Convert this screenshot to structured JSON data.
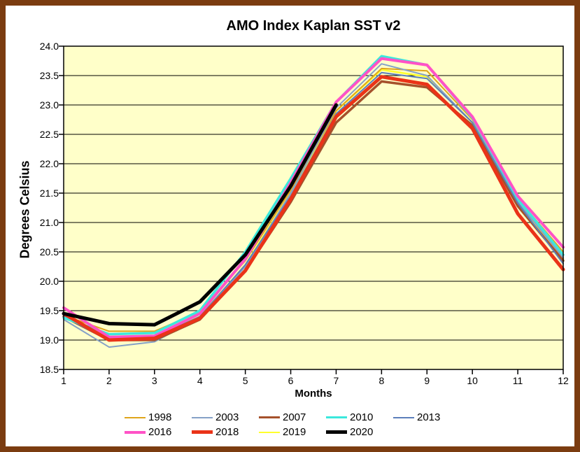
{
  "frame": {
    "border_color": "#7B3C10",
    "background": "#FFFFFF"
  },
  "chart_data": {
    "type": "line",
    "title": "AMO Index Kaplan SST v2",
    "xlabel": "Months",
    "ylabel": "Degrees Celsius",
    "x": [
      1,
      2,
      3,
      4,
      5,
      6,
      7,
      8,
      9,
      10,
      11,
      12
    ],
    "ylim": [
      18.5,
      24.0
    ],
    "yticks": [
      "18.5",
      "19.0",
      "19.5",
      "20.0",
      "20.5",
      "21.0",
      "21.5",
      "22.0",
      "22.5",
      "23.0",
      "23.5",
      "24.0"
    ],
    "grid": "horizontal",
    "plot_bg": "#FFFFC9",
    "axis_color": "#000000",
    "legend_position": "bottom",
    "legend_rows": [
      [
        "1998",
        "2003",
        "2007",
        "2010",
        "2013"
      ],
      [
        "2016",
        "2018",
        "2019",
        "2020"
      ]
    ],
    "draw_order": [
      "2019",
      "1998",
      "2003",
      "2007",
      "2013",
      "2010",
      "2016",
      "2018",
      "2020"
    ],
    "series": [
      {
        "name": "1998",
        "color": "#DFA51B",
        "width": 2,
        "values": [
          19.42,
          19.15,
          19.15,
          19.48,
          20.35,
          21.55,
          22.9,
          23.62,
          23.58,
          22.75,
          21.4,
          20.5
        ]
      },
      {
        "name": "2003",
        "color": "#85A1C7",
        "width": 2,
        "values": [
          19.35,
          18.88,
          18.97,
          19.38,
          20.25,
          21.5,
          22.95,
          23.7,
          23.5,
          22.7,
          21.35,
          20.4
        ]
      },
      {
        "name": "2007",
        "color": "#A5512B",
        "width": 3.5,
        "values": [
          19.4,
          19.0,
          19.0,
          19.35,
          20.18,
          21.35,
          22.7,
          23.4,
          23.3,
          22.65,
          21.28,
          20.35
        ]
      },
      {
        "name": "2010",
        "color": "#3BE8DC",
        "width": 3.5,
        "values": [
          19.38,
          19.1,
          19.12,
          19.5,
          20.5,
          21.75,
          23.05,
          23.83,
          23.68,
          22.78,
          21.4,
          20.45
        ]
      },
      {
        "name": "2013",
        "color": "#5C7FBB",
        "width": 2,
        "values": [
          19.4,
          19.0,
          19.05,
          19.4,
          20.28,
          21.45,
          22.85,
          23.55,
          23.45,
          22.7,
          21.33,
          20.3
        ]
      },
      {
        "name": "2016",
        "color": "#FF52C6",
        "width": 4,
        "values": [
          19.55,
          19.05,
          19.07,
          19.45,
          20.38,
          21.68,
          23.05,
          23.79,
          23.68,
          22.8,
          21.45,
          20.58
        ]
      },
      {
        "name": "2018",
        "color": "#EA3318",
        "width": 5,
        "values": [
          19.45,
          19.0,
          19.03,
          19.37,
          20.18,
          21.4,
          22.8,
          23.48,
          23.35,
          22.6,
          21.15,
          20.2
        ]
      },
      {
        "name": "2019",
        "color": "#FFFF2B",
        "width": 2.5,
        "values": [
          19.4,
          19.05,
          19.05,
          19.4,
          20.28,
          21.5,
          22.9,
          23.6,
          23.48,
          22.7,
          21.33,
          20.38
        ]
      },
      {
        "name": "2020",
        "color": "#000000",
        "width": 5,
        "values": [
          19.45,
          19.28,
          19.26,
          19.65,
          20.45,
          21.62,
          23.0
        ]
      }
    ]
  }
}
